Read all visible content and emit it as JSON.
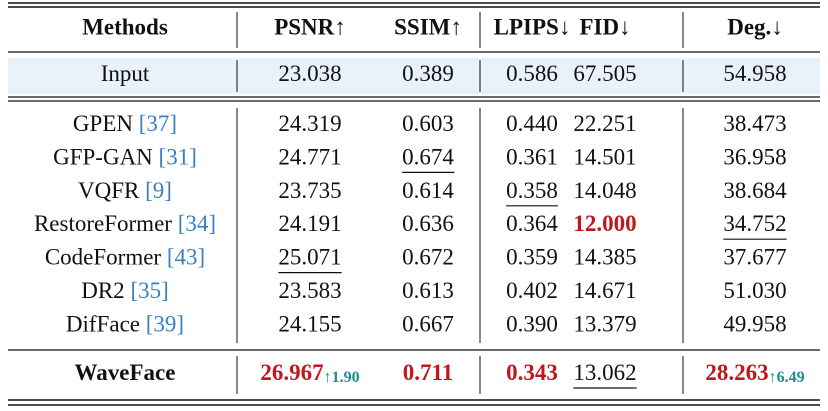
{
  "table": {
    "header": [
      "Methods",
      "PSNR↑",
      "SSIM↑",
      "LPIPS↓",
      "FID↓",
      "Deg.↓"
    ],
    "input": {
      "method": "Input",
      "cells": [
        {
          "text": "23.038"
        },
        {
          "text": "0.389"
        },
        {
          "text": "0.586"
        },
        {
          "text": "67.505"
        },
        {
          "text": "54.958"
        }
      ]
    },
    "rows": [
      {
        "method": "GPEN",
        "cite": "[37]",
        "cells": [
          {
            "text": "24.319"
          },
          {
            "text": "0.603"
          },
          {
            "text": "0.440"
          },
          {
            "text": "22.251"
          },
          {
            "text": "38.473"
          }
        ]
      },
      {
        "method": "GFP-GAN",
        "cite": "[31]",
        "cells": [
          {
            "text": "24.771"
          },
          {
            "text": "0.674",
            "style": "second"
          },
          {
            "text": "0.361"
          },
          {
            "text": "14.501"
          },
          {
            "text": "36.958"
          }
        ]
      },
      {
        "method": "VQFR",
        "cite": "[9]",
        "cells": [
          {
            "text": "23.735"
          },
          {
            "text": "0.614"
          },
          {
            "text": "0.358",
            "style": "second"
          },
          {
            "text": "14.048"
          },
          {
            "text": "38.684"
          }
        ]
      },
      {
        "method": "RestoreFormer",
        "cite": "[34]",
        "cells": [
          {
            "text": "24.191"
          },
          {
            "text": "0.636"
          },
          {
            "text": "0.364"
          },
          {
            "text": "12.000",
            "style": "best"
          },
          {
            "text": "34.752",
            "style": "second"
          }
        ]
      },
      {
        "method": "CodeFormer",
        "cite": "[43]",
        "cells": [
          {
            "text": "25.071",
            "style": "second"
          },
          {
            "text": "0.672"
          },
          {
            "text": "0.359"
          },
          {
            "text": "14.385"
          },
          {
            "text": "37.677"
          }
        ]
      },
      {
        "method": "DR2",
        "cite": "[35]",
        "cells": [
          {
            "text": "23.583"
          },
          {
            "text": "0.613"
          },
          {
            "text": "0.402"
          },
          {
            "text": "14.671"
          },
          {
            "text": "51.030"
          }
        ]
      },
      {
        "method": "DifFace",
        "cite": "[39]",
        "cells": [
          {
            "text": "24.155"
          },
          {
            "text": "0.667"
          },
          {
            "text": "0.390"
          },
          {
            "text": "13.379"
          },
          {
            "text": "49.958"
          }
        ]
      }
    ],
    "ours": {
      "method": "WaveFace",
      "cells": [
        {
          "text": "26.967",
          "style": "best",
          "gain": "↑1.90"
        },
        {
          "text": "0.711",
          "style": "best"
        },
        {
          "text": "0.343",
          "style": "best"
        },
        {
          "text": "13.062",
          "style": "second"
        },
        {
          "text": "28.263",
          "style": "best",
          "gain": "↑6.49"
        }
      ]
    }
  }
}
